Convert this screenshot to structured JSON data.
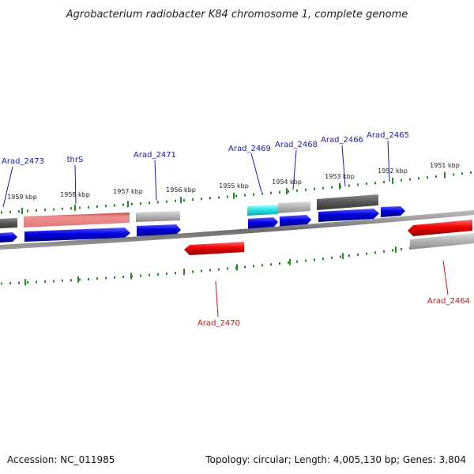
{
  "title": "Agrobacterium radiobacter K84 chromosome 1, complete genome",
  "footer": {
    "accession": "Accession: NC_011985",
    "summary": "Topology: circular; Length: 4,005,130 bp; Genes: 3,804"
  },
  "ticks": [
    "1959 kbp",
    "1958 kbp",
    "1957 kbp",
    "1956 kbp",
    "1955 kbp",
    "1954 kbp",
    "1953 kbp",
    "1952 kbp",
    "1951 kbp"
  ],
  "genes_forward_labels": [
    "Arad_2473",
    "thrS",
    "Arad_2471",
    "Arad_2469",
    "Arad_2468",
    "Arad_2466",
    "Arad_2465"
  ],
  "genes_reverse_labels": [
    "Arad_2470",
    "Arad_2464"
  ],
  "colors": {
    "forward_cds": "#0000dd",
    "reverse_cds": "#ee0000",
    "tick_mark": "#228b22",
    "backbone": "#777777",
    "gene_gray_dark": "#5a5a5a",
    "gene_gray_light": "#b0b0b0",
    "gene_pink": "#e98080",
    "gene_cyan": "#22dddd"
  }
}
